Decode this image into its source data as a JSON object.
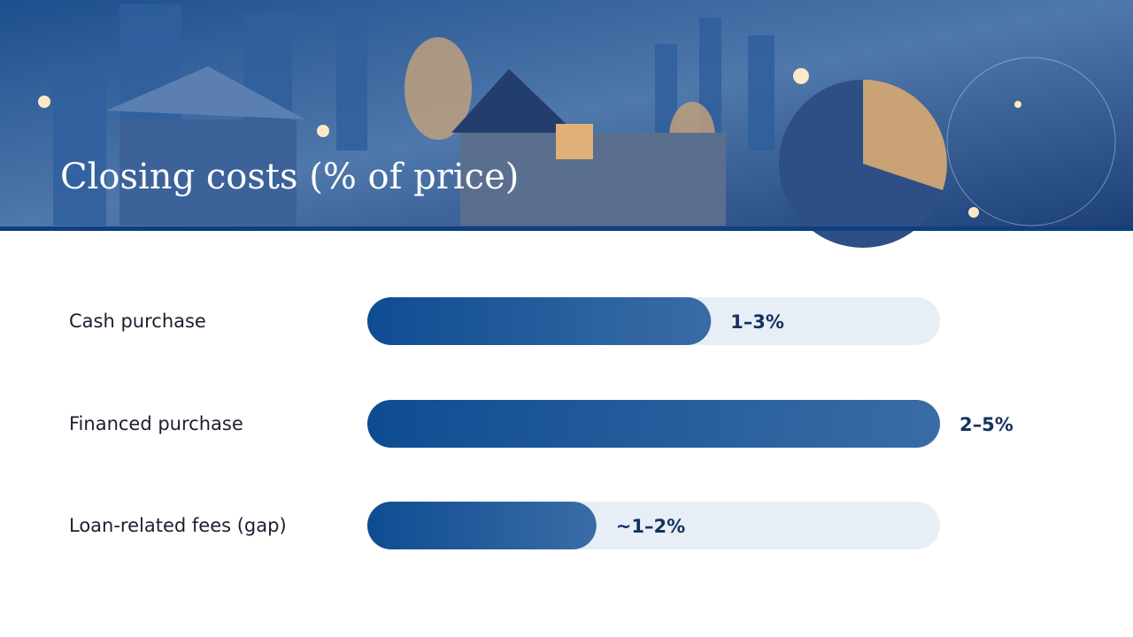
{
  "chart_data": {
    "type": "bar",
    "orientation": "horizontal",
    "title": "Closing costs (% of price)",
    "categories": [
      "Cash purchase",
      "Financed purchase",
      "Loan-related fees (gap)"
    ],
    "values": [
      3,
      5,
      2
    ],
    "value_labels": [
      "1–3%",
      "2–5%",
      "~1–2%"
    ],
    "color": "#0e4c92",
    "xlim": [
      0,
      5
    ]
  }
}
